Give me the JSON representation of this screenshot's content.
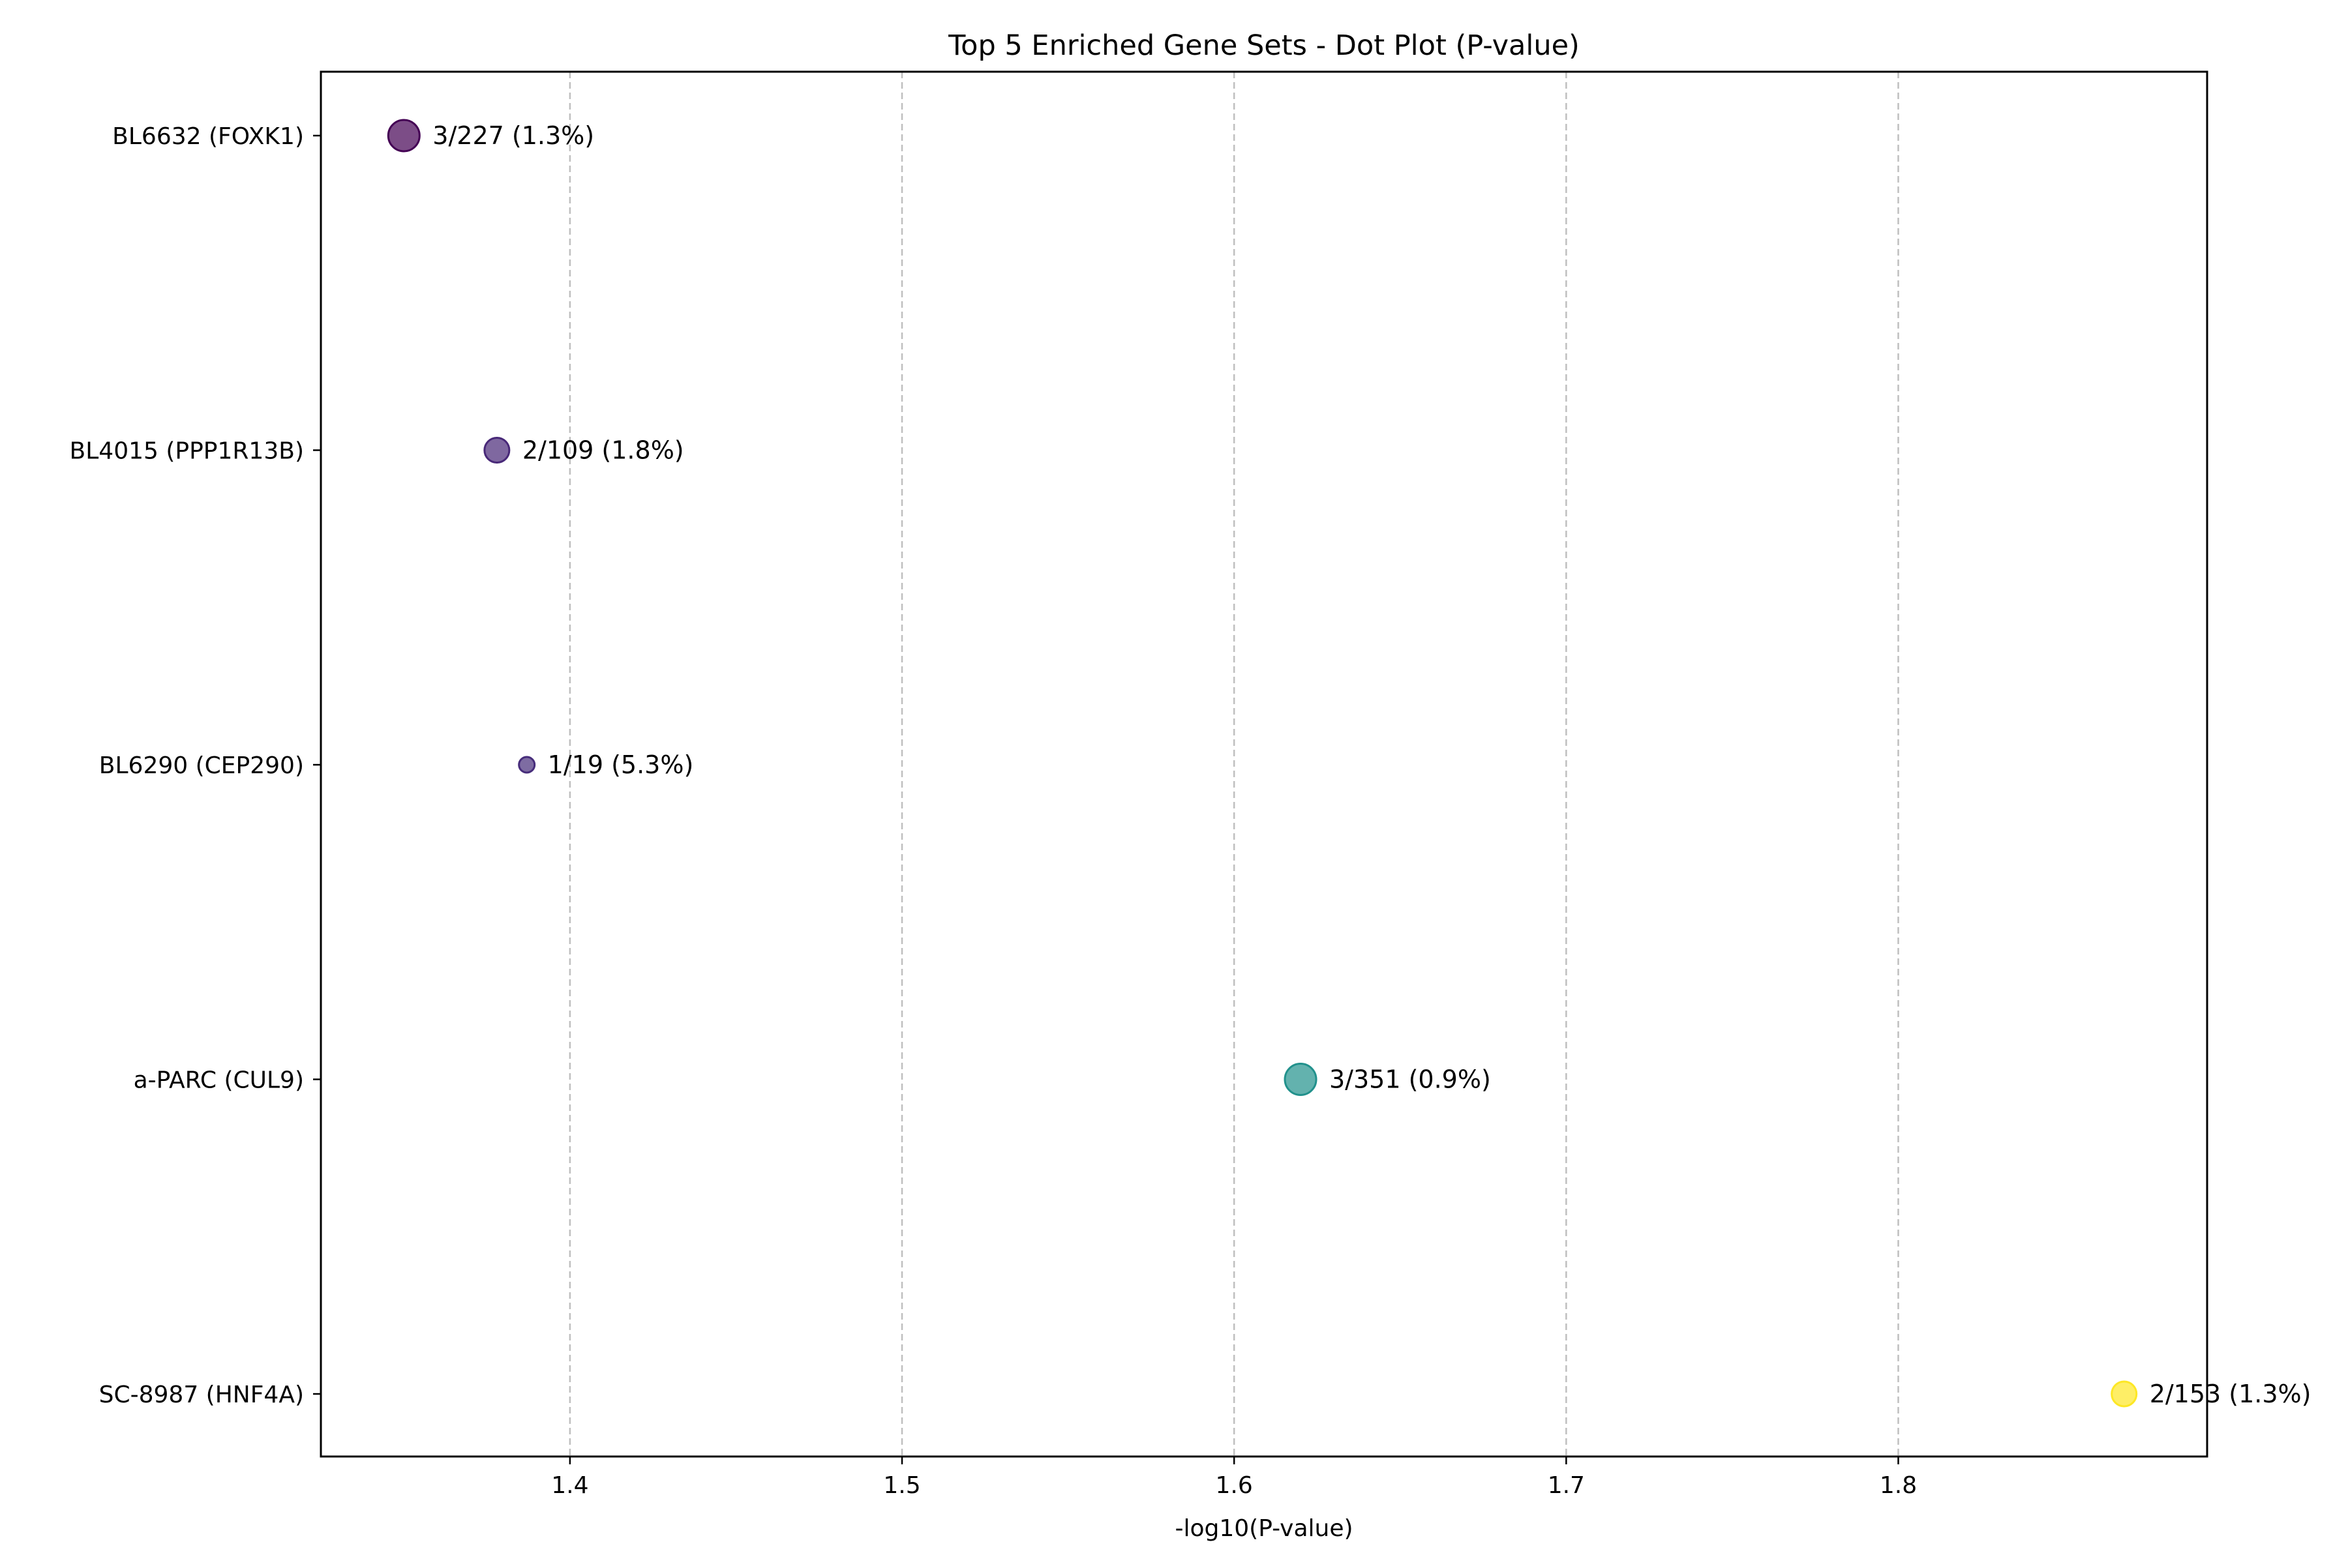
{
  "chart_data": {
    "type": "scatter",
    "title": "Top 5 Enriched Gene Sets - Dot Plot (P-value)",
    "xlabel": "-log10(P-value)",
    "ylabel": "",
    "xlim": [
      1.325,
      1.893
    ],
    "xticks": [
      "1.4",
      "1.5",
      "1.6",
      "1.7",
      "1.8"
    ],
    "grid": "x-dashed",
    "points": [
      {
        "category": "BL6632 (FOXK1)",
        "x": 1.35,
        "label": "3/227 (1.3%)",
        "color": "#440154",
        "overlap_genes": 3
      },
      {
        "category": "BL4015 (PPP1R13B)",
        "x": 1.378,
        "label": "2/109 (1.8%)",
        "color": "#482878",
        "overlap_genes": 2
      },
      {
        "category": "BL6290 (CEP290)",
        "x": 1.387,
        "label": "1/19 (5.3%)",
        "color": "#472d7b",
        "overlap_genes": 1
      },
      {
        "category": "a-PARC (CUL9)",
        "x": 1.62,
        "label": "3/351 (0.9%)",
        "color": "#21918c",
        "overlap_genes": 3
      },
      {
        "category": "SC-8987 (HNF4A)",
        "x": 1.868,
        "label": "2/153 (1.3%)",
        "color": "#fde725",
        "overlap_genes": 2
      }
    ]
  }
}
